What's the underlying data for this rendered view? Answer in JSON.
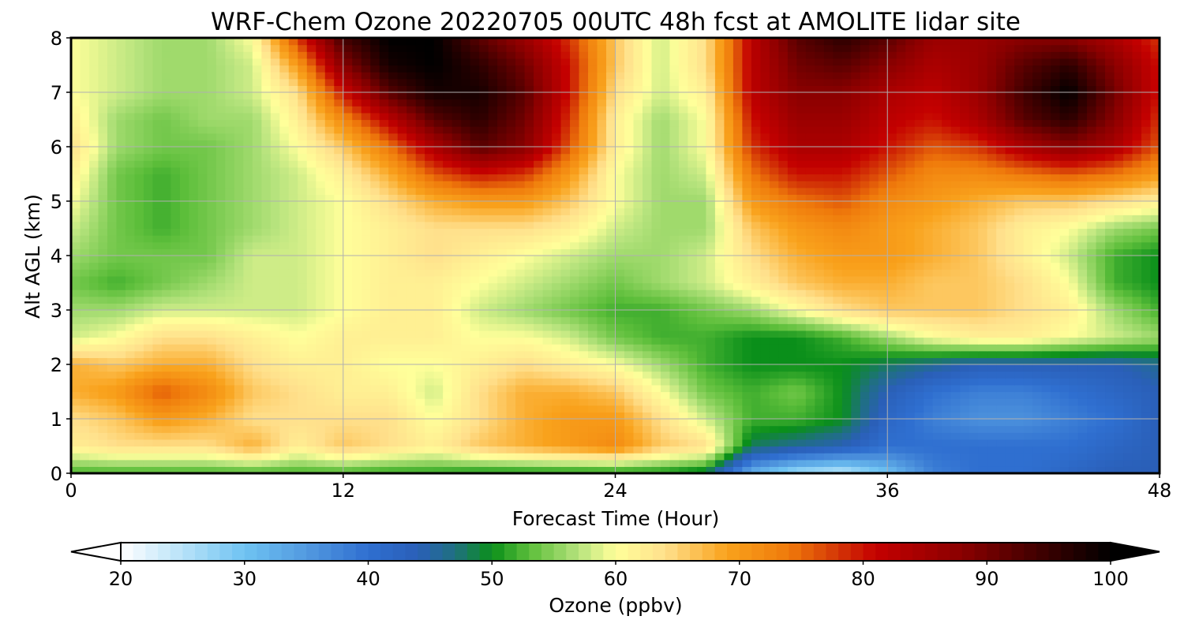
{
  "chart_data": {
    "type": "heatmap",
    "title": "WRF-Chem Ozone  20220705 00UTC 48h fcst at AMOLITE lidar site",
    "xlabel": "Forecast Time (Hour)",
    "ylabel": "Alt AGL (km)",
    "xlim": [
      0,
      48
    ],
    "ylim": [
      0,
      8
    ],
    "xticks": [
      0,
      12,
      24,
      36,
      48
    ],
    "yticks": [
      0,
      1,
      2,
      3,
      4,
      5,
      6,
      7,
      8
    ],
    "grid": true,
    "z_units": "ppbv",
    "x": [
      0,
      2,
      4,
      6,
      8,
      10,
      12,
      14,
      16,
      18,
      20,
      22,
      24,
      26,
      28,
      30,
      32,
      34,
      36,
      38,
      40,
      42,
      44,
      46,
      48
    ],
    "y": [
      0,
      0.5,
      1,
      1.5,
      2,
      2.5,
      3,
      3.5,
      4,
      4.5,
      5,
      5.5,
      6,
      6.5,
      7,
      7.5,
      8
    ],
    "z": [
      [
        52,
        52,
        52,
        52,
        52,
        52,
        52,
        51,
        51,
        50,
        50,
        50,
        50,
        50,
        48,
        32,
        26,
        24,
        30,
        38,
        40,
        40,
        42,
        44,
        44
      ],
      [
        62,
        64,
        64,
        64,
        68,
        62,
        66,
        64,
        62,
        66,
        68,
        70,
        72,
        66,
        64,
        48,
        46,
        44,
        40,
        40,
        40,
        40,
        40,
        42,
        44
      ],
      [
        64,
        66,
        70,
        68,
        64,
        64,
        64,
        64,
        60,
        64,
        68,
        70,
        70,
        64,
        58,
        52,
        52,
        50,
        42,
        38,
        36,
        36,
        38,
        40,
        44
      ],
      [
        68,
        70,
        76,
        72,
        66,
        64,
        62,
        62,
        58,
        64,
        68,
        68,
        66,
        60,
        54,
        52,
        54,
        50,
        44,
        40,
        38,
        38,
        40,
        42,
        44
      ],
      [
        68,
        66,
        68,
        68,
        64,
        62,
        62,
        60,
        60,
        62,
        64,
        62,
        60,
        56,
        52,
        50,
        50,
        50,
        48,
        46,
        44,
        44,
        44,
        44,
        46
      ],
      [
        58,
        60,
        64,
        64,
        62,
        60,
        62,
        62,
        62,
        60,
        60,
        58,
        54,
        52,
        52,
        50,
        50,
        52,
        56,
        60,
        62,
        62,
        60,
        58,
        56
      ],
      [
        56,
        56,
        58,
        58,
        58,
        58,
        60,
        62,
        62,
        58,
        56,
        54,
        52,
        52,
        54,
        56,
        60,
        64,
        66,
        66,
        66,
        64,
        62,
        56,
        52
      ],
      [
        54,
        52,
        54,
        56,
        58,
        58,
        60,
        62,
        62,
        60,
        58,
        56,
        54,
        56,
        58,
        62,
        66,
        68,
        68,
        66,
        66,
        64,
        60,
        52,
        50
      ],
      [
        56,
        54,
        54,
        54,
        58,
        58,
        60,
        62,
        64,
        62,
        60,
        58,
        56,
        56,
        58,
        64,
        68,
        70,
        70,
        68,
        66,
        62,
        58,
        52,
        50
      ],
      [
        58,
        54,
        52,
        54,
        56,
        58,
        60,
        62,
        64,
        64,
        64,
        62,
        58,
        56,
        56,
        66,
        70,
        72,
        70,
        68,
        66,
        62,
        60,
        56,
        54
      ],
      [
        60,
        54,
        52,
        54,
        56,
        58,
        60,
        64,
        68,
        70,
        70,
        66,
        60,
        56,
        56,
        70,
        74,
        76,
        72,
        70,
        68,
        66,
        66,
        64,
        62
      ],
      [
        62,
        54,
        52,
        54,
        56,
        58,
        62,
        68,
        76,
        80,
        78,
        70,
        60,
        56,
        58,
        74,
        80,
        80,
        76,
        72,
        72,
        74,
        76,
        74,
        70
      ],
      [
        64,
        56,
        54,
        54,
        56,
        60,
        66,
        74,
        84,
        92,
        88,
        76,
        62,
        56,
        60,
        78,
        84,
        84,
        80,
        76,
        78,
        84,
        88,
        84,
        76
      ],
      [
        62,
        56,
        54,
        56,
        56,
        62,
        72,
        82,
        92,
        96,
        90,
        78,
        62,
        56,
        60,
        80,
        86,
        86,
        82,
        80,
        84,
        92,
        96,
        88,
        78
      ],
      [
        60,
        58,
        56,
        56,
        58,
        64,
        80,
        92,
        98,
        98,
        92,
        80,
        64,
        58,
        62,
        82,
        88,
        88,
        84,
        82,
        86,
        94,
        100,
        90,
        80
      ],
      [
        60,
        58,
        56,
        56,
        58,
        70,
        88,
        98,
        100,
        96,
        90,
        80,
        66,
        58,
        64,
        82,
        90,
        92,
        88,
        84,
        86,
        92,
        96,
        88,
        80
      ],
      [
        60,
        58,
        56,
        56,
        60,
        78,
        94,
        100,
        100,
        92,
        86,
        78,
        66,
        58,
        64,
        82,
        92,
        96,
        92,
        86,
        86,
        88,
        88,
        84,
        78
      ]
    ],
    "colorbar": {
      "label": "Ozone  (ppbv)",
      "min": 20,
      "max": 100,
      "ticks": [
        20,
        30,
        40,
        50,
        60,
        70,
        80,
        90,
        100
      ],
      "extend": "both",
      "colors": [
        {
          "v": 20,
          "c": "#ffffff"
        },
        {
          "v": 26,
          "c": "#a9dcf7"
        },
        {
          "v": 30,
          "c": "#6fc3f2"
        },
        {
          "v": 36,
          "c": "#4c91dc"
        },
        {
          "v": 40,
          "c": "#2f6fd0"
        },
        {
          "v": 44,
          "c": "#2a5fb8"
        },
        {
          "v": 47,
          "c": "#1f7080"
        },
        {
          "v": 50,
          "c": "#0a8f1a"
        },
        {
          "v": 53,
          "c": "#5cbe3a"
        },
        {
          "v": 57,
          "c": "#b6e37d"
        },
        {
          "v": 60,
          "c": "#ffff9a"
        },
        {
          "v": 64,
          "c": "#ffe08c"
        },
        {
          "v": 69,
          "c": "#f9a21c"
        },
        {
          "v": 74,
          "c": "#ef7a0b"
        },
        {
          "v": 78,
          "c": "#d33506"
        },
        {
          "v": 81,
          "c": "#c40000"
        },
        {
          "v": 88,
          "c": "#8a0000"
        },
        {
          "v": 94,
          "c": "#420000"
        },
        {
          "v": 100,
          "c": "#000000"
        }
      ]
    }
  }
}
